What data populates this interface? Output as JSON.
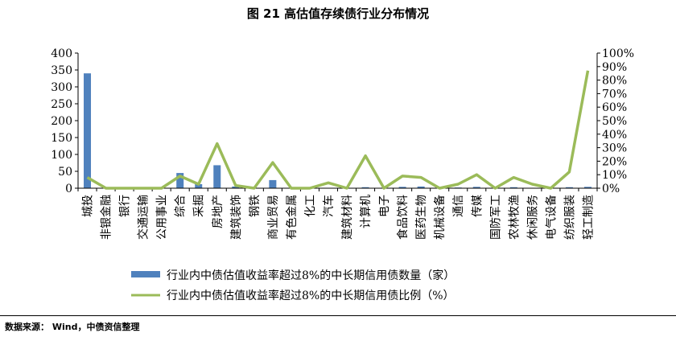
{
  "title": "图 21 高估值存续债行业分布情况",
  "source": "数据来源： Wind，中债资信整理",
  "colors": {
    "bar": "#4f81bd",
    "line": "#9bbb59",
    "axis": "#000000"
  },
  "chart_data": {
    "type": "bar+line",
    "categories": [
      "城投",
      "非银金融",
      "银行",
      "交通运输",
      "公用事业",
      "综合",
      "采掘",
      "房地产",
      "建筑装饰",
      "钢铁",
      "商业贸易",
      "有色金属",
      "化工",
      "汽车",
      "建筑材料",
      "计算机",
      "电子",
      "食品饮料",
      "医药生物",
      "机械设备",
      "通信",
      "传媒",
      "国防军工",
      "农林牧渔",
      "休闲服务",
      "电气设备",
      "纺织服装",
      "轻工制造"
    ],
    "series": [
      {
        "name": "行业内中债估值收益率超过8%的中长期信用债数量（家）",
        "type": "bar",
        "axis": "left",
        "values": [
          340,
          0,
          0,
          0,
          0,
          45,
          12,
          68,
          5,
          0,
          24,
          0,
          0,
          0,
          0,
          3,
          0,
          4,
          5,
          0,
          2,
          4,
          0,
          3,
          1,
          0,
          3,
          4
        ]
      },
      {
        "name": "行业内中债估值收益率超过8%的中长期信用债比例（%）",
        "type": "line",
        "axis": "right",
        "values": [
          8,
          0,
          0,
          0,
          0,
          9,
          3,
          33,
          2,
          0,
          19,
          0,
          0,
          4,
          0,
          24,
          0,
          9,
          8,
          0,
          3,
          10,
          0,
          8,
          3,
          0,
          12,
          87
        ]
      }
    ],
    "y_left": {
      "min": 0,
      "max": 400,
      "ticks": [
        "0",
        "50",
        "100",
        "150",
        "200",
        "250",
        "300",
        "350",
        "400"
      ]
    },
    "y_right": {
      "min": 0,
      "max": 100,
      "ticks": [
        "0%",
        "10%",
        "20%",
        "30%",
        "40%",
        "50%",
        "60%",
        "70%",
        "80%",
        "90%",
        "100%"
      ]
    },
    "legend_position": "bottom",
    "grid": false
  }
}
